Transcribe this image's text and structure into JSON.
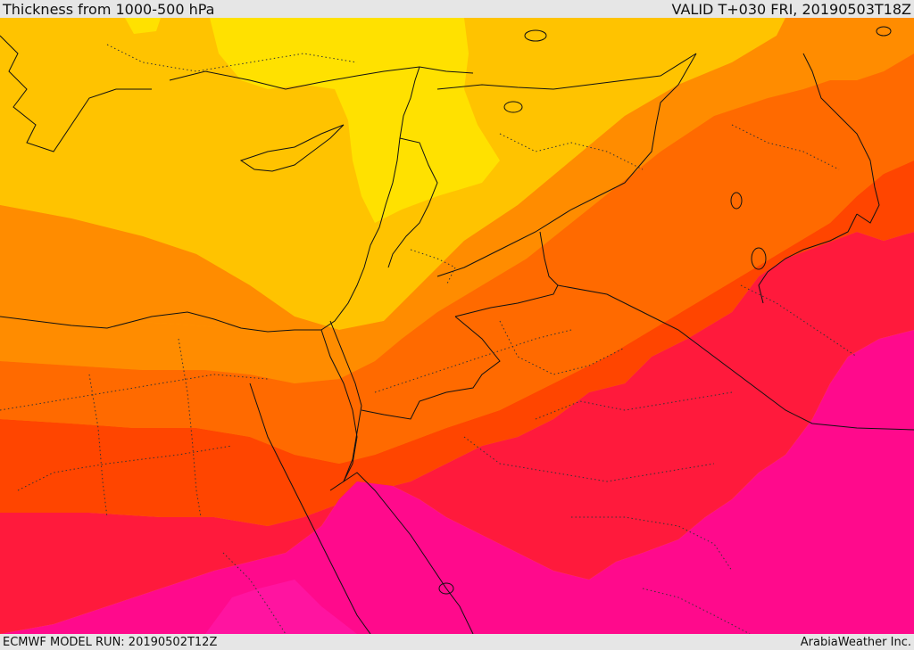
{
  "header": {
    "title": "Thickness from 1000-500 hPa",
    "valid": "VALID T+030 FRI, 20190503T18Z"
  },
  "footer": {
    "model_run": "ECMWF MODEL RUN: 20190502T12Z",
    "credit": "ArabiaWeather Inc."
  },
  "map": {
    "field": "1000-500 hPa thickness",
    "region": "Eastern Mediterranean / Middle East",
    "palette": {
      "yellow": "#ffe100",
      "gold": "#ffc300",
      "light_orange": "#ffa500",
      "orange": "#ff8c00",
      "dark_orange": "#ff6a00",
      "red_orange": "#ff4500",
      "red": "#ff1a3c",
      "crimson": "#ff0a55",
      "magenta": "#ff0a8c",
      "deep_magenta": "#ff14a0"
    }
  }
}
